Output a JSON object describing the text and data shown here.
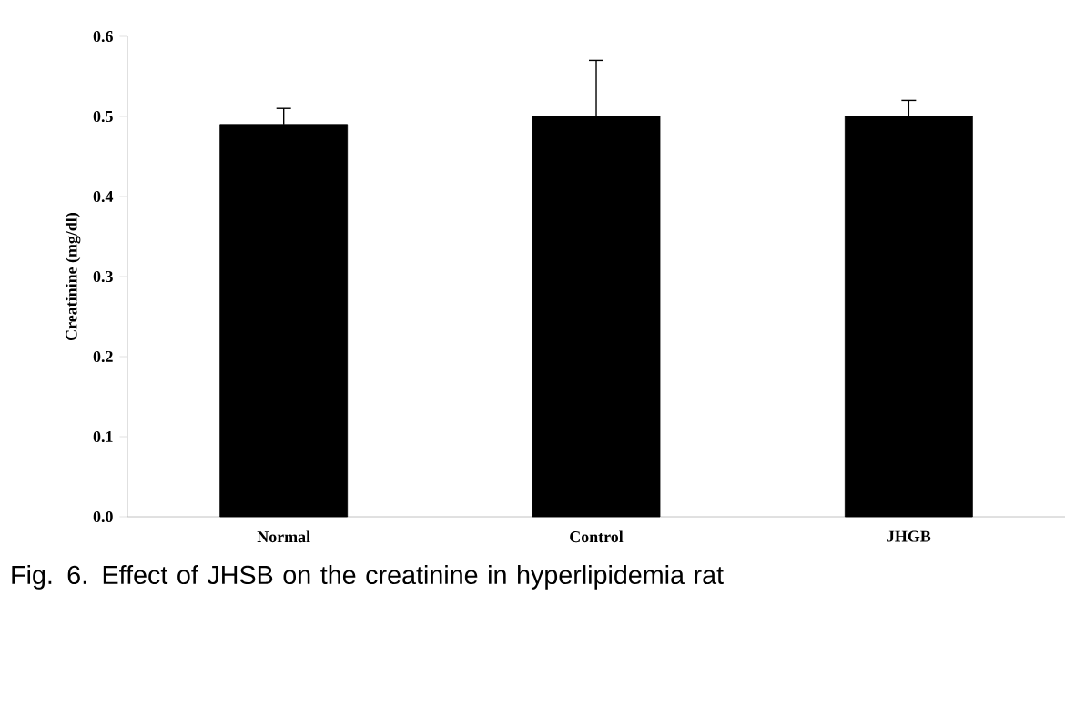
{
  "chart_data": {
    "type": "bar",
    "ylabel": "Creatinine (mg/dl)",
    "categories": [
      "Normal",
      "Control",
      "JHGB"
    ],
    "values": [
      0.49,
      0.5,
      0.5
    ],
    "errors": [
      [
        0.49,
        0.51
      ],
      [
        0.5,
        0.57
      ],
      [
        0.5,
        0.52
      ]
    ],
    "color": "#000000",
    "ylim": [
      0.0,
      0.6
    ],
    "yticks": [
      {
        "value": 0.0,
        "label": "0.0"
      },
      {
        "value": 0.1,
        "label": "0.1"
      },
      {
        "value": 0.2,
        "label": "0.2"
      },
      {
        "value": 0.3,
        "label": "0.3"
      },
      {
        "value": 0.4,
        "label": "0.4"
      },
      {
        "value": 0.5,
        "label": "0.5"
      },
      {
        "value": 0.6,
        "label": "0.6"
      }
    ],
    "grid": false,
    "annotations": [
      "Fig. 6. Effect of JHSB on the creatinine in hyperlipidemia rat"
    ]
  }
}
